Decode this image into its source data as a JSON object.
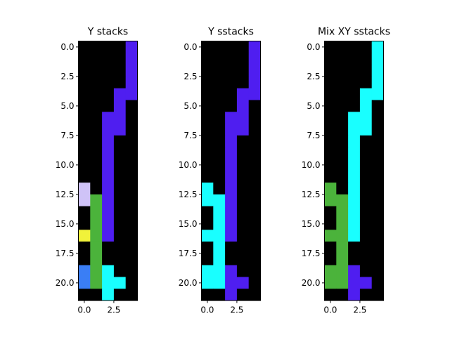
{
  "figure": {
    "background": "#ffffff"
  },
  "palette": {
    "0": "#000000",
    "L": "#cfc3f7",
    "Y": "#f1f23a",
    "B": "#3a7ef5",
    "C": "#19ffff",
    "G": "#4bb33b",
    "P": "#4f1ef0"
  },
  "chart_data": [
    {
      "type": "heatmap",
      "title": "Y stacks",
      "x_ticks": [
        0.0,
        2.5
      ],
      "x_tick_labels": [
        "0.0",
        "2.5"
      ],
      "y_ticks": [
        0.0,
        2.5,
        5.0,
        7.5,
        10.0,
        12.5,
        15.0,
        17.5,
        20.0
      ],
      "y_tick_labels": [
        "0.0",
        "2.5",
        "5.0",
        "7.5",
        "10.0",
        "12.5",
        "15.0",
        "17.5",
        "20.0"
      ],
      "xlim": [
        -0.5,
        4.5
      ],
      "ylim": [
        21.5,
        -0.5
      ],
      "grid": false,
      "rows": [
        "0000P",
        "0000P",
        "0000P",
        "0000P",
        "000PP",
        "000P0",
        "00PP0",
        "00PP0",
        "00P00",
        "00P00",
        "00P00",
        "00P00",
        "L0P00",
        "LGP00",
        "0GP00",
        "0GP00",
        "YGP00",
        "0G000",
        "0G000",
        "BGC00",
        "BGCC0",
        "00C00"
      ]
    },
    {
      "type": "heatmap",
      "title": "Y sstacks",
      "x_ticks": [
        0.0,
        2.5
      ],
      "x_tick_labels": [
        "0.0",
        "2.5"
      ],
      "y_ticks": [
        0.0,
        2.5,
        5.0,
        7.5,
        10.0,
        12.5,
        15.0,
        17.5,
        20.0
      ],
      "y_tick_labels": [
        "0.0",
        "2.5",
        "5.0",
        "7.5",
        "10.0",
        "12.5",
        "15.0",
        "17.5",
        "20.0"
      ],
      "xlim": [
        -0.5,
        4.5
      ],
      "ylim": [
        21.5,
        -0.5
      ],
      "grid": false,
      "rows": [
        "0000P",
        "0000P",
        "0000P",
        "0000P",
        "000PP",
        "000P0",
        "00PP0",
        "00PP0",
        "00P00",
        "00P00",
        "00P00",
        "00P00",
        "C0P00",
        "CCP00",
        "0CP00",
        "0CP00",
        "CCP00",
        "0C000",
        "0C000",
        "CCP00",
        "CCPP0",
        "00P00"
      ]
    },
    {
      "type": "heatmap",
      "title": "Mix XY sstacks",
      "x_ticks": [
        0.0,
        2.5
      ],
      "x_tick_labels": [
        "0.0",
        "2.5"
      ],
      "y_ticks": [
        0.0,
        2.5,
        5.0,
        7.5,
        10.0,
        12.5,
        15.0,
        17.5,
        20.0
      ],
      "y_tick_labels": [
        "0.0",
        "2.5",
        "5.0",
        "7.5",
        "10.0",
        "12.5",
        "15.0",
        "17.5",
        "20.0"
      ],
      "xlim": [
        -0.5,
        4.5
      ],
      "ylim": [
        21.5,
        -0.5
      ],
      "grid": false,
      "rows": [
        "0000C",
        "0000C",
        "0000C",
        "0000C",
        "000CC",
        "000C0",
        "00CC0",
        "00CC0",
        "00C00",
        "00C00",
        "00C00",
        "00C00",
        "G0C00",
        "GGC00",
        "0GC00",
        "0GC00",
        "GGC00",
        "0G000",
        "0G000",
        "GGP00",
        "GGPP0",
        "00P00"
      ]
    }
  ]
}
